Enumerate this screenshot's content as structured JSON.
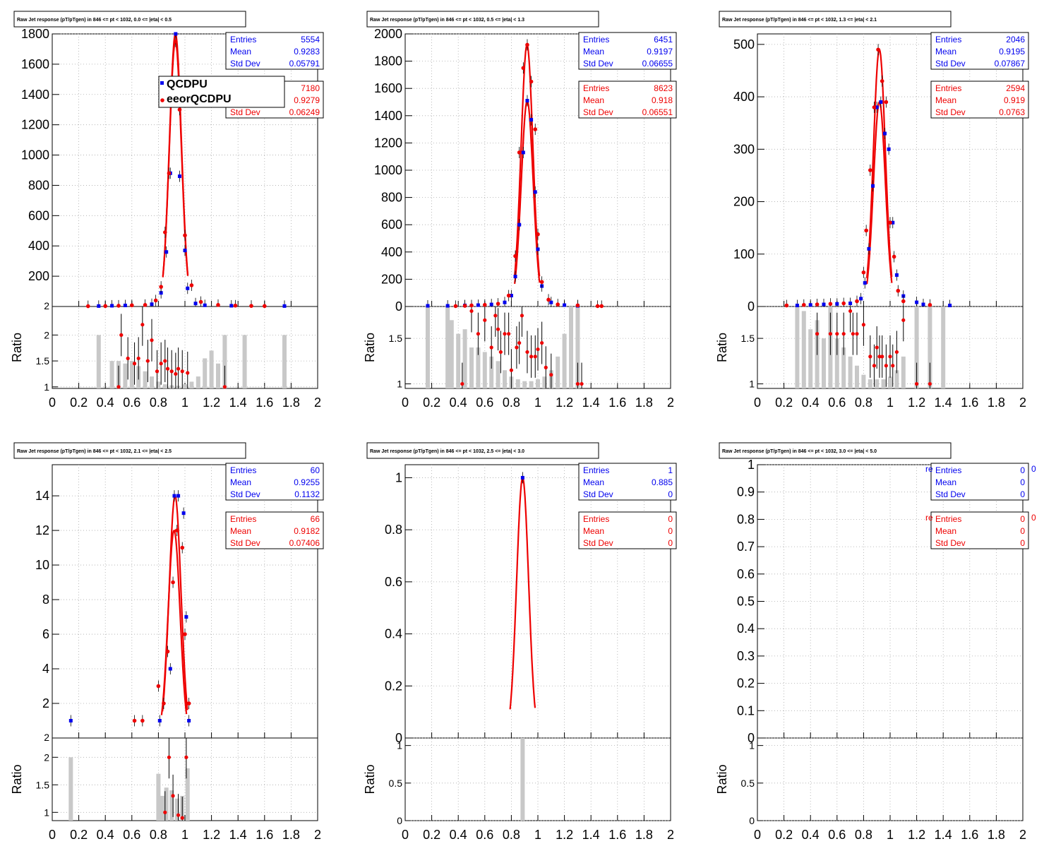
{
  "colors": {
    "series_a": "#0000ee",
    "series_b": "#ee0000",
    "fit": "#ee0000",
    "ratio_band": "#c8c8c8",
    "grid": "#aaaaaa"
  },
  "ratio_ylabel": "Ratio",
  "legend": {
    "entries": [
      "QCDPU",
      "eeorQCDPU"
    ]
  },
  "x_ticks": [
    "0",
    "0.2",
    "0.4",
    "0.6",
    "0.8",
    "1",
    "1.2",
    "1.4",
    "1.6",
    "1.8",
    "2"
  ],
  "panels": [
    {
      "title": "Raw Jet response (pT/pTgen) in 846 <= pt < 1032, 0.0 <= |eta| < 0.5",
      "stats_a": {
        "entries": "5554",
        "mean": "0.9283",
        "std": "0.05791"
      },
      "stats_b": {
        "entries": "7180",
        "mean": "0.9279",
        "std": "0.06249"
      },
      "yticks": [
        "200",
        "400",
        "600",
        "800",
        "1000",
        "1200",
        "1400",
        "1600",
        "1800"
      ],
      "ratio_ticks": [
        "1",
        "1.5",
        "2"
      ],
      "ratio_top_label": "2"
    },
    {
      "title": "Raw Jet response (pT/pTgen) in 846 <= pt < 1032, 0.5 <= |eta| < 1.3",
      "stats_a": {
        "entries": "6451",
        "mean": "0.9197",
        "std": "0.06655"
      },
      "stats_b": {
        "entries": "8623",
        "mean": "0.918",
        "std": "0.06551"
      },
      "yticks": [
        "0",
        "200",
        "400",
        "600",
        "800",
        "1000",
        "1200",
        "1400",
        "1600",
        "1800",
        "2000"
      ],
      "ratio_ticks": [
        "1",
        "1.5"
      ]
    },
    {
      "title": "Raw Jet response (pT/pTgen) in 846 <= pt < 1032, 1.3 <= |eta| < 2.1",
      "stats_a": {
        "entries": "2046",
        "mean": "0.9195",
        "std": "0.07867"
      },
      "stats_b": {
        "entries": "2594",
        "mean": "0.919",
        "std": "0.0763"
      },
      "yticks": [
        "0",
        "100",
        "200",
        "300",
        "400",
        "500"
      ],
      "ratio_ticks": [
        "1",
        "1.5"
      ]
    },
    {
      "title": "Raw Jet response (pT/pTgen) in 846 <= pt < 1032, 2.1 <= |eta| < 2.5",
      "stats_a": {
        "entries": "60",
        "mean": "0.9255",
        "std": "0.1132"
      },
      "stats_b": {
        "entries": "66",
        "mean": "0.9182",
        "std": "0.07406"
      },
      "yticks": [
        "2",
        "4",
        "6",
        "8",
        "10",
        "12",
        "14"
      ],
      "ratio_ticks": [
        "1",
        "1.5",
        "2"
      ],
      "ratio_top_label": "2"
    },
    {
      "title": "Raw Jet response (pT/pTgen) in 846 <= pt < 1032, 2.5 <= |eta| < 3.0",
      "stats_a": {
        "entries": "1",
        "mean": "0.885",
        "std": "0"
      },
      "stats_b": {
        "entries": "0",
        "mean": "0",
        "std": "0"
      },
      "yticks": [
        "0",
        "0.2",
        "0.4",
        "0.6",
        "0.8",
        "1"
      ],
      "ratio_ticks": [
        "0",
        "0.5",
        "1"
      ]
    },
    {
      "title": "Raw Jet response (pT/pTgen) in 846 <= pt < 1032, 3.0 <= |eta| < 5.0",
      "stats_a": {
        "entries": "0",
        "mean": "0",
        "std": "0"
      },
      "stats_b": {
        "entries": "0",
        "mean": "0",
        "std": "0"
      },
      "yticks": [
        "0",
        "0.1",
        "0.2",
        "0.3",
        "0.4",
        "0.5",
        "0.6",
        "0.7",
        "0.8",
        "0.9",
        "1"
      ],
      "ratio_ticks": [
        "0",
        "0.5",
        "1"
      ],
      "clipped_a": "re",
      "clipped_b": "re",
      "clipped_a_tail": "0",
      "clipped_b_tail": "0"
    }
  ],
  "chart_data": [
    {
      "type": "scatter",
      "title": "Raw Jet response (pT/pTgen) in 846 <= pt < 1032, 0.0 <= |eta| < 0.5",
      "xlim": [
        0,
        2
      ],
      "ylim": [
        0,
        1800
      ],
      "ratio_ylim": [
        0.97,
        2.55
      ],
      "series": [
        {
          "name": "QCDPU",
          "x": [
            0.35,
            0.45,
            0.55,
            0.75,
            0.82,
            0.86,
            0.89,
            0.93,
            0.96,
            1.0,
            1.02,
            1.08,
            1.15,
            1.35,
            1.75
          ],
          "y": [
            3,
            5,
            7,
            15,
            90,
            360,
            880,
            1800,
            860,
            370,
            120,
            20,
            8,
            5,
            3
          ]
        },
        {
          "name": "eeorQCDPU",
          "x": [
            0.27,
            0.4,
            0.5,
            0.6,
            0.7,
            0.78,
            0.82,
            0.85,
            0.88,
            0.93,
            0.96,
            1.0,
            1.05,
            1.12,
            1.25,
            1.38,
            1.5,
            1.6
          ],
          "y": [
            2,
            3,
            5,
            8,
            10,
            40,
            130,
            490,
            880,
            1750,
            1300,
            470,
            140,
            30,
            10,
            6,
            4,
            3
          ]
        }
      ],
      "ratio": {
        "x": [
          0.5,
          0.52,
          0.57,
          0.62,
          0.65,
          0.68,
          0.72,
          0.75,
          0.79,
          0.82,
          0.85,
          0.87,
          0.9,
          0.93,
          0.95,
          0.98,
          1.02,
          1.3
        ],
        "y": [
          1.0,
          2.0,
          1.55,
          1.45,
          1.55,
          2.2,
          1.5,
          1.9,
          1.3,
          1.45,
          1.5,
          1.35,
          1.3,
          1.25,
          1.35,
          1.3,
          1.27,
          1.0
        ]
      },
      "band": {
        "x": [
          0.35,
          0.45,
          0.5,
          0.55,
          0.6,
          0.65,
          0.7,
          0.75,
          0.8,
          0.85,
          0.9,
          0.95,
          1.0,
          1.05,
          1.1,
          1.15,
          1.2,
          1.25,
          1.3,
          1.45,
          1.75
        ],
        "y": [
          2.0,
          1.5,
          1.5,
          1.45,
          1.5,
          1.4,
          1.3,
          1.2,
          1.1,
          1.05,
          1.03,
          1.02,
          1.05,
          1.1,
          1.2,
          1.55,
          1.7,
          1.45,
          2.0,
          2.0,
          2.0
        ]
      }
    },
    {
      "type": "scatter",
      "title": "Raw Jet response (pT/pTgen) in 846 <= pt < 1032, 0.5 <= |eta| < 1.3",
      "xlim": [
        0,
        2
      ],
      "ylim": [
        0,
        2000
      ],
      "ratio_ylim": [
        0.95,
        1.85
      ],
      "series": [
        {
          "name": "QCDPU",
          "x": [
            0.17,
            0.32,
            0.45,
            0.55,
            0.65,
            0.75,
            0.8,
            0.83,
            0.86,
            0.89,
            0.92,
            0.95,
            0.98,
            1.0,
            1.03,
            1.1,
            1.2,
            1.3
          ],
          "y": [
            5,
            5,
            8,
            10,
            15,
            30,
            80,
            220,
            600,
            1130,
            1510,
            1370,
            840,
            420,
            150,
            30,
            10,
            5
          ]
        },
        {
          "name": "eeorQCDPU",
          "x": [
            0.38,
            0.45,
            0.5,
            0.6,
            0.7,
            0.78,
            0.83,
            0.86,
            0.89,
            0.92,
            0.95,
            0.98,
            1.0,
            1.03,
            1.08,
            1.15,
            1.3,
            1.45,
            1.48
          ],
          "y": [
            3,
            5,
            8,
            12,
            20,
            80,
            370,
            1130,
            1750,
            1920,
            1650,
            1300,
            530,
            180,
            50,
            15,
            8,
            3,
            3
          ]
        }
      ],
      "ratio": {
        "x": [
          0.43,
          0.5,
          0.55,
          0.6,
          0.65,
          0.68,
          0.7,
          0.72,
          0.75,
          0.78,
          0.8,
          0.84,
          0.86,
          0.88,
          0.92,
          0.95,
          0.98,
          1.0,
          1.03,
          1.06,
          1.1,
          1.3,
          1.33
        ],
        "y": [
          1.0,
          1.8,
          1.55,
          1.7,
          1.4,
          1.75,
          1.6,
          1.35,
          1.55,
          1.55,
          1.15,
          1.4,
          1.45,
          1.75,
          1.35,
          1.3,
          1.3,
          1.38,
          1.45,
          1.18,
          1.1,
          1.0,
          1.0
        ]
      },
      "band": {
        "x": [
          0.17,
          0.32,
          0.35,
          0.4,
          0.45,
          0.5,
          0.55,
          0.6,
          0.65,
          0.7,
          0.75,
          0.8,
          0.85,
          0.9,
          0.95,
          1.0,
          1.05,
          1.1,
          1.15,
          1.2,
          1.25,
          1.3
        ],
        "y": [
          1.85,
          1.85,
          1.7,
          1.55,
          1.6,
          1.4,
          1.4,
          1.35,
          1.3,
          1.25,
          1.15,
          1.08,
          1.05,
          1.03,
          1.03,
          1.05,
          1.08,
          1.15,
          1.3,
          1.55,
          1.85,
          1.85
        ]
      }
    },
    {
      "type": "scatter",
      "title": "Raw Jet response (pT/pTgen) in 846 <= pt < 1032, 1.3 <= |eta| < 2.1",
      "xlim": [
        0,
        2
      ],
      "ylim": [
        0,
        520
      ],
      "ratio_ylim": [
        0.95,
        1.85
      ],
      "series": [
        {
          "name": "QCDPU",
          "x": [
            0.3,
            0.4,
            0.5,
            0.6,
            0.7,
            0.78,
            0.81,
            0.84,
            0.87,
            0.9,
            0.93,
            0.96,
            0.99,
            1.02,
            1.05,
            1.1,
            1.2,
            1.25,
            1.45
          ],
          "y": [
            2,
            3,
            4,
            5,
            6,
            15,
            45,
            110,
            230,
            380,
            390,
            330,
            300,
            160,
            60,
            20,
            8,
            4,
            2
          ]
        },
        {
          "name": "eeorQCDPU",
          "x": [
            0.22,
            0.35,
            0.45,
            0.55,
            0.65,
            0.75,
            0.8,
            0.82,
            0.85,
            0.88,
            0.91,
            0.94,
            0.97,
            1.0,
            1.03,
            1.06,
            1.1,
            1.3
          ],
          "y": [
            2,
            3,
            4,
            5,
            6,
            10,
            65,
            145,
            260,
            380,
            490,
            430,
            390,
            160,
            95,
            30,
            10,
            3
          ]
        }
      ],
      "ratio": {
        "x": [
          0.45,
          0.55,
          0.6,
          0.65,
          0.7,
          0.72,
          0.75,
          0.8,
          0.85,
          0.88,
          0.9,
          0.92,
          0.94,
          0.97,
          1.0,
          1.02,
          1.05,
          1.1,
          1.2,
          1.3
        ],
        "y": [
          1.55,
          1.55,
          1.55,
          1.55,
          1.8,
          1.55,
          1.55,
          1.65,
          1.3,
          1.2,
          1.4,
          1.3,
          1.3,
          1.2,
          1.3,
          1.2,
          1.35,
          1.7,
          1.0,
          1.0
        ]
      },
      "band": {
        "x": [
          0.3,
          0.35,
          0.4,
          0.45,
          0.5,
          0.55,
          0.6,
          0.65,
          0.7,
          0.75,
          0.8,
          0.85,
          0.9,
          0.95,
          1.0,
          1.05,
          1.1,
          1.2,
          1.3,
          1.4
        ],
        "y": [
          1.85,
          1.8,
          1.6,
          1.7,
          1.5,
          1.85,
          1.5,
          1.4,
          1.3,
          1.2,
          1.1,
          1.05,
          1.05,
          1.05,
          1.08,
          1.15,
          1.3,
          1.85,
          1.85,
          1.85
        ]
      }
    },
    {
      "type": "scatter",
      "title": "Raw Jet response (pT/pTgen) in 846 <= pt < 1032, 2.1 <= |eta| < 2.5",
      "xlim": [
        0,
        2
      ],
      "ylim": [
        0,
        15.8
      ],
      "ratio_ylim": [
        0.85,
        2.35
      ],
      "series": [
        {
          "name": "QCDPU",
          "x": [
            0.14,
            0.81,
            0.89,
            0.92,
            0.95,
            0.99,
            1.01,
            1.03
          ],
          "y": [
            1,
            1,
            4,
            14,
            14,
            13,
            7,
            1
          ]
        },
        {
          "name": "eeorQCDPU",
          "x": [
            0.62,
            0.68,
            0.8,
            0.84,
            0.87,
            0.91,
            0.94,
            0.98,
            1.0,
            1.03
          ],
          "y": [
            1,
            1,
            3,
            2,
            5,
            9,
            12,
            11,
            6,
            2
          ]
        }
      ],
      "ratio": {
        "x": [
          0.85,
          0.88,
          0.91,
          0.95,
          0.98,
          1.01
        ],
        "y": [
          1.0,
          2.0,
          1.3,
          0.95,
          0.9,
          2.0
        ]
      },
      "band": {
        "x": [
          0.14,
          0.8,
          0.83,
          0.86,
          0.9,
          0.94,
          0.98,
          1.02
        ],
        "y": [
          2.0,
          1.7,
          1.3,
          1.45,
          1.4,
          1.25,
          1.3,
          1.8
        ]
      }
    },
    {
      "type": "scatter",
      "title": "Raw Jet response (pT/pTgen) in 846 <= pt < 1032, 2.5 <= |eta| < 3.0",
      "xlim": [
        0,
        2
      ],
      "ylim": [
        0,
        1.05
      ],
      "ratio_ylim": [
        0,
        1.1
      ],
      "series": [
        {
          "name": "QCDPU",
          "x": [
            0.885
          ],
          "y": [
            1
          ]
        },
        {
          "name": "eeorQCDPU",
          "x": [],
          "y": []
        }
      ],
      "ratio": {
        "x": [],
        "y": []
      },
      "band": {
        "x": [
          0.885
        ],
        "y": [
          1.1
        ]
      }
    },
    {
      "type": "scatter",
      "title": "Raw Jet response (pT/pTgen) in 846 <= pt < 1032, 3.0 <= |eta| < 5.0",
      "xlim": [
        0,
        2
      ],
      "ylim": [
        0,
        1
      ],
      "ratio_ylim": [
        0,
        1.1
      ],
      "series": [
        {
          "name": "QCDPU",
          "x": [],
          "y": []
        },
        {
          "name": "eeorQCDPU",
          "x": [],
          "y": []
        }
      ],
      "ratio": {
        "x": [],
        "y": []
      },
      "band": {
        "x": [],
        "y": []
      }
    }
  ]
}
